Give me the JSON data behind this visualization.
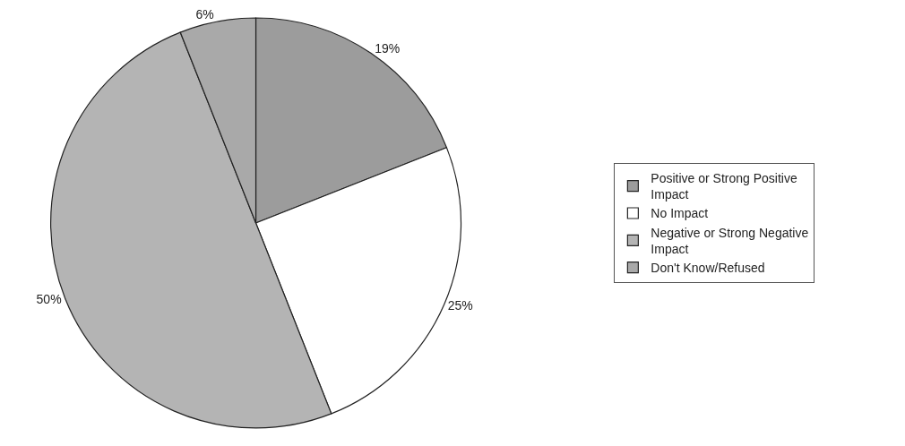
{
  "chart_data": {
    "type": "pie",
    "categories": [
      "Positive or Strong Positive Impact",
      "No Impact",
      "Negative or Strong Negative Impact",
      "Don't Know/Refused"
    ],
    "values": [
      19,
      25,
      50,
      6
    ],
    "value_labels": [
      "19%",
      "25%",
      "50%",
      "6%"
    ],
    "colors": [
      "#9c9c9c",
      "#ffffff",
      "#b4b4b4",
      "#a9a9a9"
    ],
    "legend": "right"
  }
}
